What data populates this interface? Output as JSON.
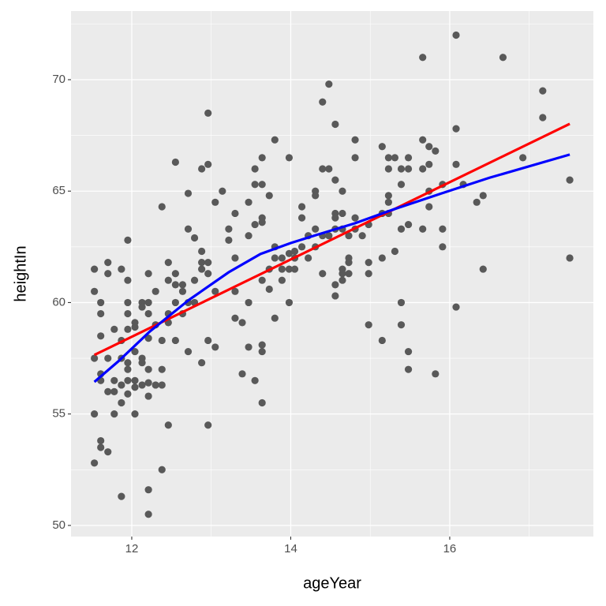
{
  "chart_data": {
    "type": "scatter",
    "x_label": "ageYear",
    "y_label": "heightIn",
    "xlim": [
      11.236,
      17.807
    ],
    "ylim": [
      49.5,
      73.08
    ],
    "xticks": [
      12,
      14,
      16
    ],
    "yticks": [
      50,
      55,
      60,
      65,
      70
    ],
    "x_minor_grid": [
      11,
      13,
      15,
      17
    ],
    "y_minor_grid": [
      52.5,
      57.5,
      62.5,
      67.5,
      72.5
    ],
    "grid": true,
    "panel_color": "#ebebeb",
    "points": {
      "color": "#595959",
      "x": [
        11.53,
        11.53,
        11.53,
        11.53,
        11.53,
        11.61,
        11.61,
        11.61,
        11.61,
        11.61,
        11.61,
        11.61,
        11.7,
        11.7,
        11.7,
        11.7,
        11.7,
        11.78,
        11.78,
        11.78,
        11.78,
        11.87,
        11.87,
        11.87,
        11.87,
        11.87,
        11.87,
        11.95,
        11.95,
        11.95,
        11.95,
        11.95,
        11.95,
        11.95,
        11.95,
        11.95,
        12.04,
        12.04,
        12.04,
        12.04,
        12.04,
        12.04,
        12.13,
        12.13,
        12.13,
        12.13,
        12.13,
        12.21,
        12.21,
        12.21,
        12.21,
        12.21,
        12.21,
        12.21,
        12.21,
        12.21,
        12.3,
        12.3,
        12.3,
        12.38,
        12.38,
        12.38,
        12.38,
        12.38,
        12.46,
        12.46,
        12.46,
        12.46,
        12.46,
        12.55,
        12.55,
        12.55,
        12.55,
        12.55,
        12.64,
        12.64,
        12.64,
        12.71,
        12.71,
        12.71,
        12.71,
        12.79,
        12.79,
        12.79,
        12.88,
        12.88,
        12.88,
        12.88,
        12.88,
        12.96,
        12.96,
        12.96,
        12.96,
        12.96,
        12.96,
        13.05,
        13.05,
        13.05,
        13.14,
        13.22,
        13.22,
        13.3,
        13.3,
        13.3,
        13.3,
        13.39,
        13.39,
        13.47,
        13.47,
        13.47,
        13.47,
        13.55,
        13.55,
        13.55,
        13.55,
        13.64,
        13.64,
        13.64,
        13.64,
        13.64,
        13.64,
        13.64,
        13.64,
        13.73,
        13.73,
        13.73,
        13.8,
        13.8,
        13.8,
        13.8,
        13.89,
        13.89,
        13.89,
        13.98,
        13.98,
        13.98,
        13.98,
        14.05,
        14.05,
        14.05,
        14.14,
        14.14,
        14.14,
        14.22,
        14.22,
        14.31,
        14.31,
        14.31,
        14.31,
        14.4,
        14.4,
        14.4,
        14.4,
        14.48,
        14.48,
        14.48,
        14.56,
        14.56,
        14.56,
        14.56,
        14.56,
        14.56,
        14.56,
        14.65,
        14.65,
        14.65,
        14.65,
        14.65,
        14.65,
        14.73,
        14.73,
        14.73,
        14.73,
        14.81,
        14.81,
        14.81,
        14.81,
        14.9,
        14.98,
        14.98,
        14.98,
        14.98,
        15.15,
        15.15,
        15.15,
        15.15,
        15.23,
        15.23,
        15.23,
        15.23,
        15.23,
        15.31,
        15.31,
        15.39,
        15.39,
        15.39,
        15.39,
        15.39,
        15.48,
        15.48,
        15.48,
        15.48,
        15.48,
        15.66,
        15.66,
        15.66,
        15.66,
        15.74,
        15.74,
        15.74,
        15.74,
        15.82,
        15.82,
        15.91,
        15.91,
        15.91,
        16.08,
        16.08,
        16.08,
        16.08,
        16.17,
        16.34,
        16.42,
        16.42,
        16.67,
        16.92,
        17.17,
        17.17,
        17.51,
        17.51
      ],
      "y": [
        61.5,
        60.5,
        57.5,
        55.0,
        52.8,
        60.0,
        59.5,
        58.5,
        56.8,
        56.5,
        53.8,
        53.5,
        61.8,
        61.3,
        57.5,
        56.0,
        53.3,
        58.8,
        56.5,
        56.0,
        55.0,
        61.5,
        58.3,
        57.5,
        56.3,
        55.5,
        51.3,
        62.8,
        61.0,
        60.0,
        59.5,
        58.8,
        57.3,
        57.0,
        55.9,
        56.5,
        59.1,
        58.9,
        57.8,
        56.5,
        56.2,
        55.0,
        60.0,
        59.8,
        57.5,
        57.3,
        56.3,
        61.3,
        60.0,
        59.5,
        58.4,
        57.0,
        55.8,
        51.6,
        50.5,
        56.4,
        60.5,
        59.0,
        56.3,
        64.3,
        58.3,
        57.0,
        56.3,
        52.5,
        61.8,
        61.0,
        59.5,
        54.5,
        59.1,
        66.3,
        61.3,
        60.8,
        58.3,
        60.0,
        60.8,
        59.5,
        60.5,
        64.9,
        63.3,
        57.8,
        60.0,
        62.9,
        61.0,
        60.0,
        66.0,
        62.3,
        61.8,
        61.5,
        57.3,
        68.5,
        66.2,
        61.8,
        61.3,
        58.3,
        54.5,
        64.5,
        60.5,
        58.0,
        65.0,
        63.3,
        62.8,
        64.0,
        62.0,
        60.5,
        59.3,
        59.1,
        56.8,
        64.5,
        63.0,
        60.0,
        58.0,
        66.0,
        65.3,
        56.5,
        63.5,
        66.5,
        65.3,
        63.8,
        63.6,
        61.0,
        58.1,
        57.8,
        55.5,
        64.8,
        61.5,
        60.6,
        67.3,
        62.5,
        62.0,
        59.3,
        62.0,
        61.0,
        61.5,
        66.5,
        62.2,
        61.5,
        60.0,
        62.3,
        61.5,
        62.0,
        64.3,
        63.8,
        62.5,
        63.0,
        62.0,
        65.0,
        64.8,
        63.3,
        62.5,
        69.0,
        66.0,
        63.0,
        61.3,
        69.8,
        66.0,
        63.0,
        68.0,
        65.5,
        64.0,
        63.8,
        60.8,
        60.3,
        63.3,
        65.0,
        64.0,
        63.3,
        61.5,
        61.3,
        61.0,
        62.0,
        61.8,
        63.0,
        61.3,
        67.3,
        66.5,
        63.8,
        63.3,
        63.0,
        63.5,
        61.8,
        59.0,
        61.3,
        67.0,
        64.0,
        62.0,
        58.3,
        66.5,
        66.0,
        64.8,
        64.5,
        64.0,
        66.5,
        62.3,
        66.0,
        65.3,
        63.3,
        60.0,
        59.0,
        66.5,
        66.0,
        63.5,
        57.8,
        57.0,
        71.0,
        67.3,
        66.0,
        63.3,
        67.0,
        66.2,
        65.0,
        64.3,
        66.8,
        56.8,
        65.3,
        63.3,
        62.5,
        72.0,
        67.8,
        66.2,
        59.8,
        65.3,
        64.5,
        64.8,
        61.5,
        71.0,
        66.5,
        69.5,
        68.3,
        65.5,
        62.0
      ]
    },
    "lines": [
      {
        "color": "#ff0000",
        "x": [
          11.53,
          17.51
        ],
        "y": [
          57.65,
          68.02
        ]
      },
      {
        "color": "#0000ff",
        "x": [
          11.53,
          11.83,
          12.23,
          12.72,
          13.22,
          13.62,
          14.0,
          14.32,
          14.81,
          15.31,
          15.9,
          16.5,
          17.51
        ],
        "y": [
          56.44,
          57.36,
          58.71,
          60.12,
          61.36,
          62.18,
          62.67,
          63.03,
          63.56,
          64.2,
          64.9,
          65.6,
          66.64
        ]
      }
    ]
  }
}
